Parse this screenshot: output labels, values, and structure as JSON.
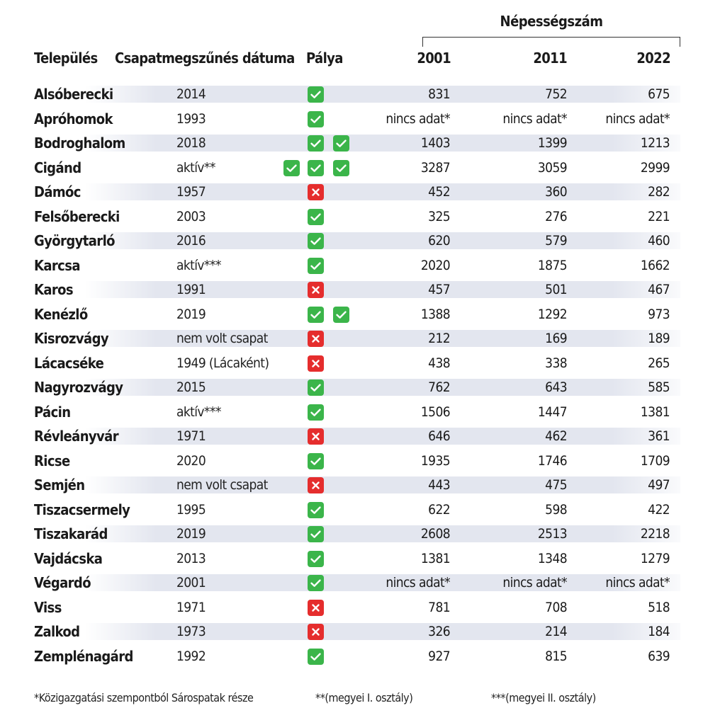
{
  "group_title": "Népességszám",
  "headers": {
    "name": "Település",
    "date": "Csapatmegszűnés dátuma",
    "field": "Pálya",
    "y2001": "2001",
    "y2011": "2011",
    "y2022": "2022"
  },
  "rows": [
    {
      "name": "Alsóberecki",
      "date": "2014",
      "field": [
        "check"
      ],
      "p2001": "831",
      "p2011": "752",
      "p2022": "675"
    },
    {
      "name": "Apróhomok",
      "date": "1993",
      "field": [
        "check"
      ],
      "p2001": "nincs adat*",
      "p2011": "nincs adat*",
      "p2022": "nincs adat*"
    },
    {
      "name": "Bodroghalom",
      "date": "2018",
      "field": [
        "check",
        "check"
      ],
      "p2001": "1403",
      "p2011": "1399",
      "p2022": "1213"
    },
    {
      "name": "Cigánd",
      "date": "aktív**",
      "field": [
        "check",
        "check",
        "check"
      ],
      "p2001": "3287",
      "p2011": "3059",
      "p2022": "2999"
    },
    {
      "name": "Dámóc",
      "date": "1957",
      "field": [
        "cross"
      ],
      "p2001": "452",
      "p2011": "360",
      "p2022": "282"
    },
    {
      "name": "Felsőberecki",
      "date": "2003",
      "field": [
        "check"
      ],
      "p2001": "325",
      "p2011": "276",
      "p2022": "221"
    },
    {
      "name": "Györgytarló",
      "date": "2016",
      "field": [
        "check"
      ],
      "p2001": "620",
      "p2011": "579",
      "p2022": "460"
    },
    {
      "name": "Karcsa",
      "date": "aktív***",
      "field": [
        "check"
      ],
      "p2001": "2020",
      "p2011": "1875",
      "p2022": "1662"
    },
    {
      "name": "Karos",
      "date": "1991",
      "field": [
        "cross"
      ],
      "p2001": "457",
      "p2011": "501",
      "p2022": "467"
    },
    {
      "name": "Kenézlő",
      "date": "2019",
      "field": [
        "check",
        "check"
      ],
      "p2001": "1388",
      "p2011": "1292",
      "p2022": "973"
    },
    {
      "name": "Kisrozvágy",
      "date": "nem volt csapat",
      "field": [
        "cross"
      ],
      "p2001": "212",
      "p2011": "169",
      "p2022": "189"
    },
    {
      "name": "Lácacséke",
      "date": "1949 (Lácaként)",
      "field": [
        "cross"
      ],
      "p2001": "438",
      "p2011": "338",
      "p2022": "265"
    },
    {
      "name": "Nagyrozvágy",
      "date": "2015",
      "field": [
        "check"
      ],
      "p2001": "762",
      "p2011": "643",
      "p2022": "585"
    },
    {
      "name": "Pácin",
      "date": "aktív***",
      "field": [
        "check"
      ],
      "p2001": "1506",
      "p2011": "1447",
      "p2022": "1381"
    },
    {
      "name": "Révleányvár",
      "date": "1971",
      "field": [
        "cross"
      ],
      "p2001": "646",
      "p2011": "462",
      "p2022": "361"
    },
    {
      "name": "Ricse",
      "date": "2020",
      "field": [
        "check"
      ],
      "p2001": "1935",
      "p2011": "1746",
      "p2022": "1709"
    },
    {
      "name": "Semjén",
      "date": "nem volt csapat",
      "field": [
        "cross"
      ],
      "p2001": "443",
      "p2011": "475",
      "p2022": "497"
    },
    {
      "name": "Tiszacsermely",
      "date": "1995",
      "field": [
        "check"
      ],
      "p2001": "622",
      "p2011": "598",
      "p2022": "422"
    },
    {
      "name": "Tiszakarád",
      "date": "2019",
      "field": [
        "check"
      ],
      "p2001": "2608",
      "p2011": "2513",
      "p2022": "2218"
    },
    {
      "name": "Vajdácska",
      "date": "2013",
      "field": [
        "check"
      ],
      "p2001": "1381",
      "p2011": "1348",
      "p2022": "1279"
    },
    {
      "name": "Végardó",
      "date": "2001",
      "field": [
        "check"
      ],
      "p2001": "nincs adat*",
      "p2011": "nincs adat*",
      "p2022": "nincs adat*"
    },
    {
      "name": "Viss",
      "date": "1971",
      "field": [
        "cross"
      ],
      "p2001": "781",
      "p2011": "708",
      "p2022": "518"
    },
    {
      "name": "Zalkod",
      "date": "1973",
      "field": [
        "cross"
      ],
      "p2001": "326",
      "p2011": "214",
      "p2022": "184"
    },
    {
      "name": "Zemplénagárd",
      "date": "1992",
      "field": [
        "check"
      ],
      "p2001": "927",
      "p2011": "815",
      "p2022": "639"
    }
  ],
  "footnotes": {
    "n1": "*Közigazgatási szempontból Sárospatak része",
    "n2": "**(megyei I. osztály)",
    "n3": "***(megyei II. osztály)"
  },
  "colors": {
    "check": "#3bb54a",
    "cross": "#e52d2d",
    "band": "#e3e6ef"
  }
}
